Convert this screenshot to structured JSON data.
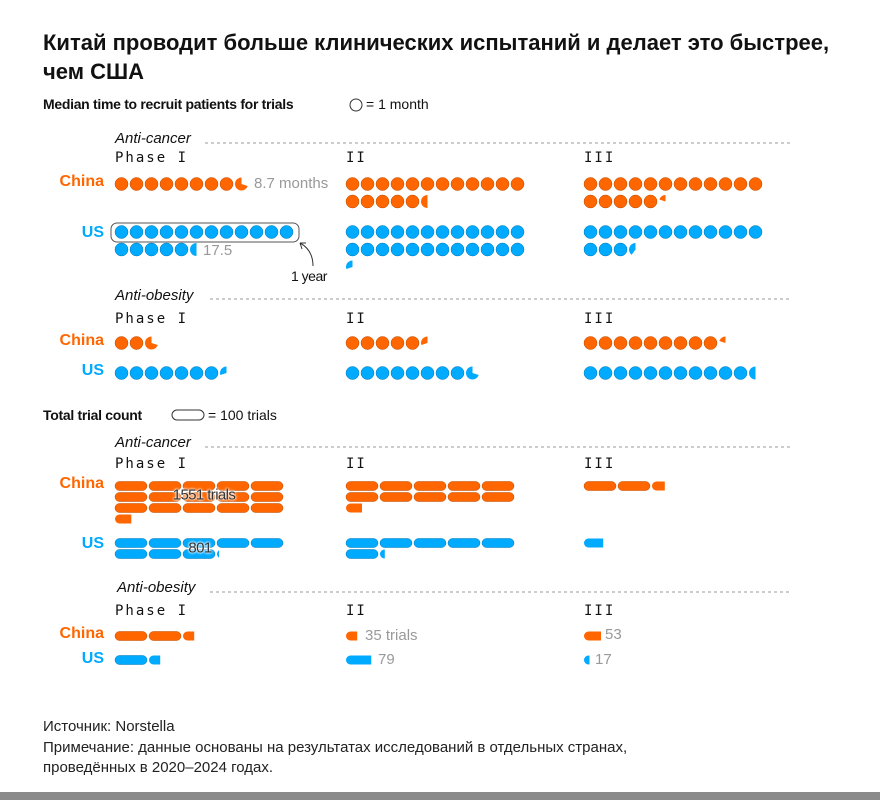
{
  "title": "Китай проводит больше клинических испытаний и делает это быстрее, чем США",
  "colors": {
    "China": "#ff6600",
    "US": "#00aaff",
    "note": "#999999"
  },
  "chart_data": [
    {
      "type": "pictogram",
      "title": "Median time to recruit patients for trials",
      "unit_label": "= 1 month",
      "unit_icon": "circle",
      "groups": [
        {
          "name": "Anti-cancer",
          "phases": [
            "Phase I",
            "II",
            "III"
          ],
          "series": [
            {
              "name": "China",
              "values": [
                8.7,
                17.5,
                17.2
              ]
            },
            {
              "name": "US",
              "values": [
                17.5,
                24.3,
                15.4
              ]
            }
          ]
        },
        {
          "name": "Anti-obesity",
          "phases": [
            "Phase I",
            "II",
            "III"
          ],
          "series": [
            {
              "name": "China",
              "values": [
                2.7,
                5.3,
                9.2
              ]
            },
            {
              "name": "US",
              "values": [
                7.3,
                8.7,
                11.5
              ]
            }
          ]
        }
      ],
      "annotations": {
        "china_phase1": "8.7 months",
        "us_phase1": "17.5",
        "one_year": "1 year"
      }
    },
    {
      "type": "pictogram",
      "title": "Total trial count",
      "unit_label": "= 100 trials",
      "unit_icon": "pill",
      "groups": [
        {
          "name": "Anti-cancer",
          "phases": [
            "Phase I",
            "II",
            "III"
          ],
          "series": [
            {
              "name": "China",
              "values": [
                1551,
                1050,
                240
              ]
            },
            {
              "name": "US",
              "values": [
                801,
                615,
                60
              ]
            }
          ]
        },
        {
          "name": "Anti-obesity",
          "phases": [
            "Phase I",
            "II",
            "III"
          ],
          "series": [
            {
              "name": "China",
              "values": [
                235,
                35,
                53
              ]
            },
            {
              "name": "US",
              "values": [
                135,
                79,
                17
              ]
            }
          ]
        }
      ],
      "annotations": {
        "china_cancer_phase1": "1551 trials",
        "us_cancer_phase1": "801",
        "china_obesity_phase2": "35 trials",
        "us_obesity_phase2": "79",
        "china_obesity_phase3": "53",
        "us_obesity_phase3": "17"
      }
    }
  ],
  "footer": {
    "source": "Источник: Norstella",
    "note_line1": "Примечание: данные основаны на результатах исследований в отдельных странах,",
    "note_line2": "проведённых в 2020–2024 годах."
  }
}
